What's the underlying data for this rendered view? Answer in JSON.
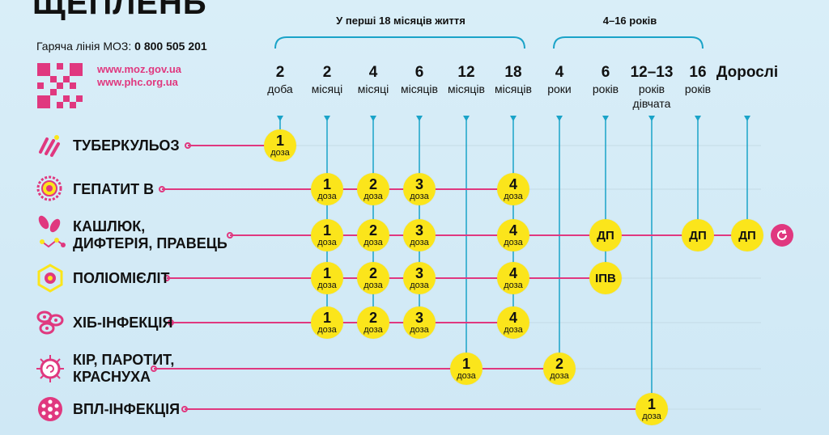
{
  "header": {
    "title": "ЩЕПЛЕНЬ",
    "hotline_label": "Гаряча лінія МОЗ:",
    "hotline_number": "0 800 505 201",
    "website_1": "www.moz.gov.ua",
    "website_2": "www.phc.org.ua"
  },
  "groups": {
    "first_18_months": "У перші 18 місяців життя",
    "age_4_16": "4–16 років"
  },
  "columns": [
    {
      "num": "2",
      "unit": "доба"
    },
    {
      "num": "2",
      "unit": "місяці"
    },
    {
      "num": "4",
      "unit": "місяці"
    },
    {
      "num": "6",
      "unit": "місяців"
    },
    {
      "num": "12",
      "unit": "місяців"
    },
    {
      "num": "18",
      "unit": "місяців"
    },
    {
      "num": "4",
      "unit": "роки"
    },
    {
      "num": "6",
      "unit": "років"
    },
    {
      "num": "12–13",
      "unit": "років",
      "unit2": "дівчата"
    },
    {
      "num": "16",
      "unit": "років"
    },
    {
      "num": "Дорослі",
      "unit": ""
    }
  ],
  "dose_word": "доза",
  "rows": [
    {
      "label": [
        "ТУБЕРКУЛЬОЗ"
      ],
      "icon": "tuberculosis-bacteria-icon"
    },
    {
      "label": [
        "ГЕПАТИТ В"
      ],
      "icon": "hepatitis-virus-icon"
    },
    {
      "label": [
        "КАШЛЮК,",
        "ДИФТЕРІЯ, ПРАВЕЦЬ"
      ],
      "icon": "pertussis-bacteria-icon"
    },
    {
      "label": [
        "ПОЛІОМІЄЛІТ"
      ],
      "icon": "polio-virus-icon"
    },
    {
      "label": [
        "ХІБ-ІНФЕКЦІЯ"
      ],
      "icon": "hib-bacteria-icon"
    },
    {
      "label": [
        "КІР, ПАРОТИТ,",
        "КРАСНУХА"
      ],
      "icon": "measles-virus-icon"
    },
    {
      "label": [
        "ВПЛ-ІНФЕКЦІЯ"
      ],
      "icon": "hpv-virus-icon"
    }
  ],
  "doses": [
    {
      "row": 0,
      "col": 0,
      "n": "1"
    },
    {
      "row": 1,
      "col": 1,
      "n": "1"
    },
    {
      "row": 1,
      "col": 2,
      "n": "2"
    },
    {
      "row": 1,
      "col": 3,
      "n": "3"
    },
    {
      "row": 1,
      "col": 5,
      "n": "4"
    },
    {
      "row": 2,
      "col": 1,
      "n": "1"
    },
    {
      "row": 2,
      "col": 2,
      "n": "2"
    },
    {
      "row": 2,
      "col": 3,
      "n": "3"
    },
    {
      "row": 2,
      "col": 5,
      "n": "4"
    },
    {
      "row": 2,
      "col": 7,
      "code": "ДП"
    },
    {
      "row": 2,
      "col": 9,
      "code": "ДП"
    },
    {
      "row": 2,
      "col": 10,
      "code": "ДП"
    },
    {
      "row": 3,
      "col": 1,
      "n": "1"
    },
    {
      "row": 3,
      "col": 2,
      "n": "2"
    },
    {
      "row": 3,
      "col": 3,
      "n": "3"
    },
    {
      "row": 3,
      "col": 5,
      "n": "4"
    },
    {
      "row": 3,
      "col": 7,
      "code": "ІПВ"
    },
    {
      "row": 4,
      "col": 1,
      "n": "1"
    },
    {
      "row": 4,
      "col": 2,
      "n": "2"
    },
    {
      "row": 4,
      "col": 3,
      "n": "3"
    },
    {
      "row": 4,
      "col": 5,
      "n": "4"
    },
    {
      "row": 5,
      "col": 4,
      "n": "1"
    },
    {
      "row": 5,
      "col": 6,
      "n": "2"
    },
    {
      "row": 6,
      "col": 8,
      "n": "1"
    }
  ],
  "colors": {
    "line": "#e0387f",
    "vline": "#1aa3c8",
    "dose": "#fbe51b",
    "accent": "#e0387f"
  },
  "repeat_icon": "repeat-every-10-years-icon"
}
